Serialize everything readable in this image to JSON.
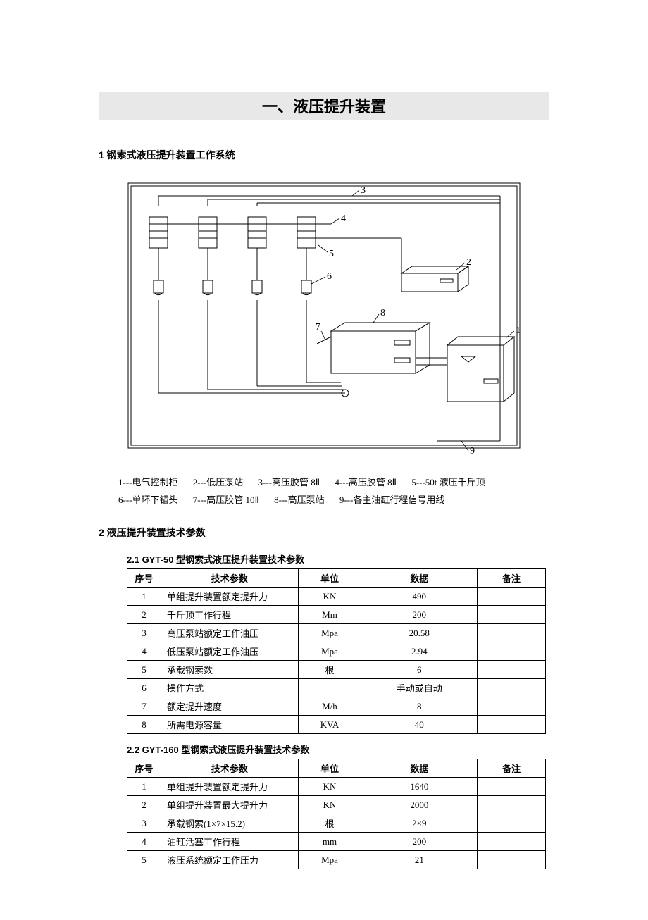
{
  "title": "一、液压提升装置",
  "section1_header": "1 钢索式液压提升装置工作系统",
  "legend_line1": [
    "1---电气控制柜",
    "2---低压泵站",
    "3---高压胶管 8Ⅱ",
    "4---高压胶管 8Ⅱ",
    "5---50t 液压千斤顶"
  ],
  "legend_line2": [
    "6---单环下锚头",
    "7---高压胶管 10Ⅱ",
    "8---高压泵站",
    "9---各主油缸行程信号用线"
  ],
  "section2_header": "2 液压提升装置技术参数",
  "table1": {
    "caption": "2.1 GYT-50 型钢索式液压提升装置技术参数",
    "headers": [
      "序号",
      "技术参数",
      "单位",
      "数据",
      "备注"
    ],
    "rows": [
      [
        "1",
        "单组提升装置额定提升力",
        "KN",
        "490",
        ""
      ],
      [
        "2",
        "千斤顶工作行程",
        "Mm",
        "200",
        ""
      ],
      [
        "3",
        "高压泵站额定工作油压",
        "Mpa",
        "20.58",
        ""
      ],
      [
        "4",
        "低压泵站额定工作油压",
        "Mpa",
        "2.94",
        ""
      ],
      [
        "5",
        "承载钢索数",
        "根",
        "6",
        ""
      ],
      [
        "6",
        "操作方式",
        "",
        "手动或自动",
        ""
      ],
      [
        "7",
        "额定提升速度",
        "M/h",
        "8",
        ""
      ],
      [
        "8",
        "所需电源容量",
        "KVA",
        "40",
        ""
      ]
    ]
  },
  "table2": {
    "caption": "2.2 GYT-160 型钢索式液压提升装置技术参数",
    "headers": [
      "序号",
      "技术参数",
      "单位",
      "数据",
      "备注"
    ],
    "rows": [
      [
        "1",
        "单组提升装置额定提升力",
        "KN",
        "1640",
        ""
      ],
      [
        "2",
        "单组提升装置最大提升力",
        "KN",
        "2000",
        ""
      ],
      [
        "3",
        "承载钢索(1×7×15.2)",
        "根",
        "2×9",
        ""
      ],
      [
        "4",
        "油缸活塞工作行程",
        "mm",
        "200",
        ""
      ],
      [
        "5",
        "液压系统额定工作压力",
        "Mpa",
        "21",
        ""
      ]
    ]
  },
  "diagram": {
    "stroke": "#000000",
    "bg": "#ffffff"
  }
}
